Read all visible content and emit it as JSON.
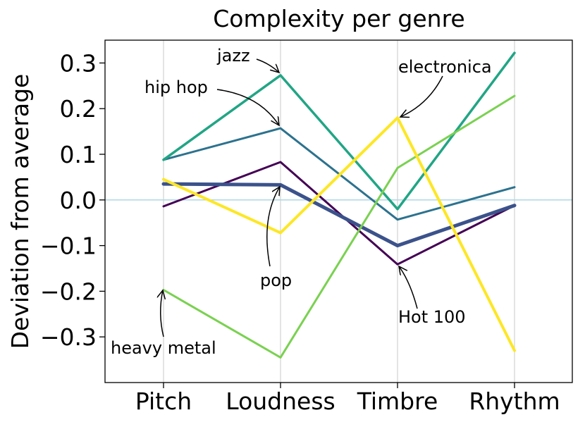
{
  "chart_data": {
    "type": "line",
    "title": "Complexity per genre",
    "xlabel": "",
    "ylabel": "Deviation from average",
    "categories": [
      "Pitch",
      "Loudness",
      "Timbre",
      "Rhythm"
    ],
    "ylim": [
      -0.4,
      0.35
    ],
    "yticks": [
      0.3,
      0.2,
      0.1,
      0.0,
      -0.1,
      -0.2,
      -0.3
    ],
    "ytick_labels": [
      "0.3",
      "0.2",
      "0.1",
      "0.0",
      "−0.1",
      "−0.2",
      "−0.3"
    ],
    "grid": "vertical",
    "reference_line": {
      "y": 0.0,
      "color": "#add8e6"
    },
    "series": [
      {
        "name": "Hot 100",
        "color": "#440154",
        "width": 3,
        "values": [
          -0.014,
          0.083,
          -0.141,
          -0.012
        ]
      },
      {
        "name": "pop",
        "color": "#3b528b",
        "width": 5,
        "values": [
          0.035,
          0.033,
          -0.1,
          -0.012
        ]
      },
      {
        "name": "hip hop",
        "color": "#2c728e",
        "width": 3,
        "values": [
          0.088,
          0.157,
          -0.043,
          0.028
        ]
      },
      {
        "name": "jazz",
        "color": "#21a585",
        "width": 3.5,
        "values": [
          0.088,
          0.273,
          -0.02,
          0.322
        ]
      },
      {
        "name": "heavy metal",
        "color": "#7ad151",
        "width": 3,
        "values": [
          -0.197,
          -0.345,
          0.07,
          0.228
        ]
      },
      {
        "name": "electronica",
        "color": "#fde725",
        "width": 4,
        "values": [
          0.045,
          -0.072,
          0.18,
          -0.33
        ]
      }
    ],
    "annotations": [
      {
        "text": "jazz",
        "series": "jazz",
        "point": 1
      },
      {
        "text": "hip hop",
        "series": "hip hop",
        "point": 1
      },
      {
        "text": "electronica",
        "series": "electronica",
        "point": 2
      },
      {
        "text": "pop",
        "series": "pop",
        "point": 1
      },
      {
        "text": "Hot 100",
        "series": "Hot 100",
        "point": 2
      },
      {
        "text": "heavy metal",
        "series": "heavy metal",
        "point": 0
      }
    ]
  }
}
